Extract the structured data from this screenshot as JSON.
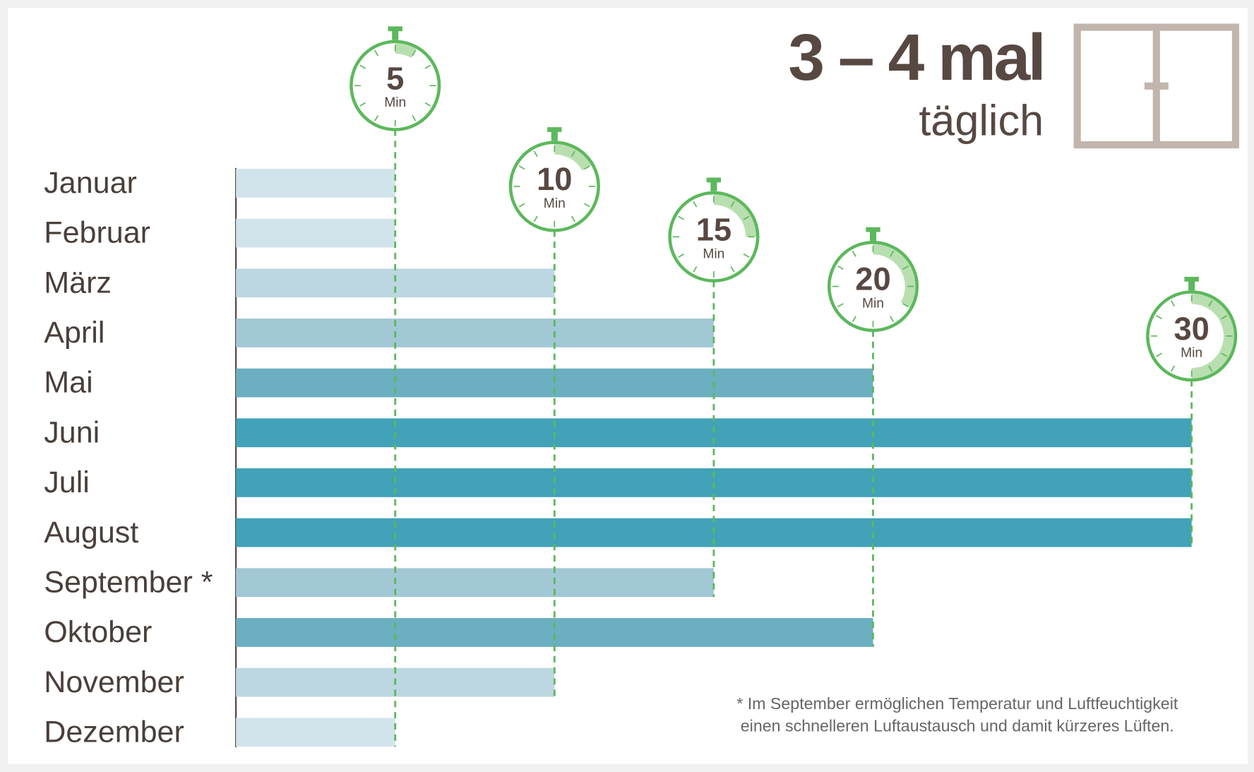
{
  "chart_data": {
    "type": "bar",
    "orientation": "horizontal",
    "title": "3 – 4 mal",
    "subtitle": "täglich",
    "categories": [
      "Januar",
      "Februar",
      "März",
      "April",
      "Mai",
      "Juni",
      "Juli",
      "August",
      "September *",
      "Oktober",
      "November",
      "Dezember"
    ],
    "values": [
      5,
      5,
      10,
      15,
      20,
      30,
      30,
      30,
      15,
      20,
      10,
      5
    ],
    "colors": [
      "#d2e4eb",
      "#d2e4eb",
      "#bcd7e1",
      "#a2c8d5",
      "#6bafc0",
      "#41a2b8",
      "#41a2b8",
      "#41a2b8",
      "#a2c8d5",
      "#6bafc0",
      "#bcd7e1",
      "#d2e4eb"
    ],
    "xlim": [
      0,
      30
    ],
    "xticks": [
      5,
      10,
      15,
      20,
      30
    ],
    "xtick_unit": "Min",
    "tick_color": "#5cb85c",
    "footnote": [
      "* Im September ermöglichen Temperatur und Luftfeuchtigkeit",
      "einen schnelleren Luftaustausch und damit kürzeres Lüften."
    ]
  }
}
